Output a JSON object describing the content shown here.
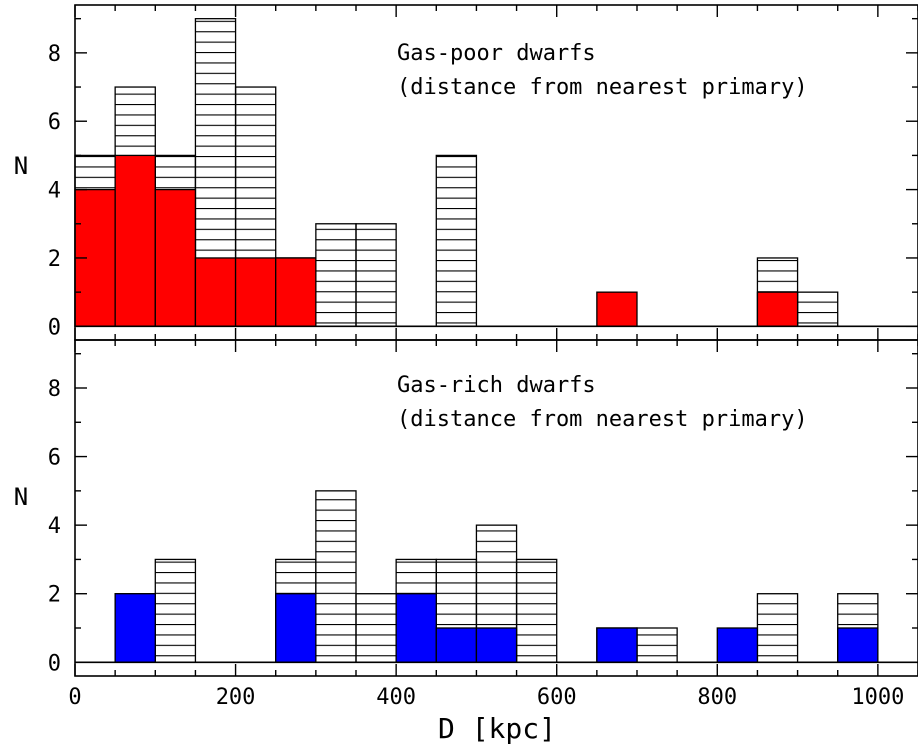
{
  "chart_data": [
    {
      "type": "bar",
      "panel": "top",
      "annotation_lines": [
        "Gas-poor dwarfs",
        "(distance from nearest primary)"
      ],
      "xlabel": "D [kpc]",
      "ylabel": "N",
      "xlim": [
        0,
        1050
      ],
      "ylim": [
        -0.4,
        9.4
      ],
      "bin_width": 50,
      "bin_starts": [
        0,
        50,
        100,
        150,
        200,
        250,
        300,
        350,
        400,
        450,
        500,
        550,
        600,
        650,
        700,
        750,
        800,
        850,
        900,
        950,
        1000
      ],
      "series": [
        {
          "style": "hatched",
          "values": [
            5,
            7,
            5,
            9,
            7,
            2,
            3,
            3,
            0,
            5,
            0,
            0,
            0,
            0,
            0,
            0,
            0,
            2,
            1,
            0,
            0
          ]
        },
        {
          "style": "filled",
          "color": "#ff0000",
          "values": [
            4,
            5,
            4,
            2,
            2,
            2,
            0,
            0,
            0,
            0,
            0,
            0,
            0,
            1,
            0,
            0,
            0,
            1,
            0,
            0,
            0
          ]
        }
      ],
      "yticks": [
        "0",
        "2",
        "4",
        "6",
        "8"
      ],
      "xticks": [
        "0",
        "200",
        "400",
        "600",
        "800",
        "1000"
      ]
    },
    {
      "type": "bar",
      "panel": "bottom",
      "annotation_lines": [
        "Gas-rich dwarfs",
        "(distance from nearest primary)"
      ],
      "xlabel": "D [kpc]",
      "ylabel": "N",
      "xlim": [
        0,
        1050
      ],
      "ylim": [
        -0.4,
        9.4
      ],
      "bin_width": 50,
      "bin_starts": [
        0,
        50,
        100,
        150,
        200,
        250,
        300,
        350,
        400,
        450,
        500,
        550,
        600,
        650,
        700,
        750,
        800,
        850,
        900,
        950,
        1000
      ],
      "series": [
        {
          "style": "hatched",
          "values": [
            0,
            2,
            3,
            0,
            0,
            3,
            5,
            2,
            3,
            3,
            4,
            3,
            0,
            1,
            1,
            0,
            0,
            2,
            0,
            2,
            0
          ]
        },
        {
          "style": "filled",
          "color": "#0000ff",
          "values": [
            0,
            2,
            0,
            0,
            0,
            2,
            0,
            0,
            2,
            1,
            1,
            0,
            0,
            1,
            0,
            0,
            1,
            0,
            0,
            1,
            0
          ]
        }
      ],
      "yticks": [
        "0",
        "2",
        "4",
        "6",
        "8"
      ],
      "xticks": [
        "0",
        "200",
        "400",
        "600",
        "800",
        "1000"
      ]
    }
  ]
}
